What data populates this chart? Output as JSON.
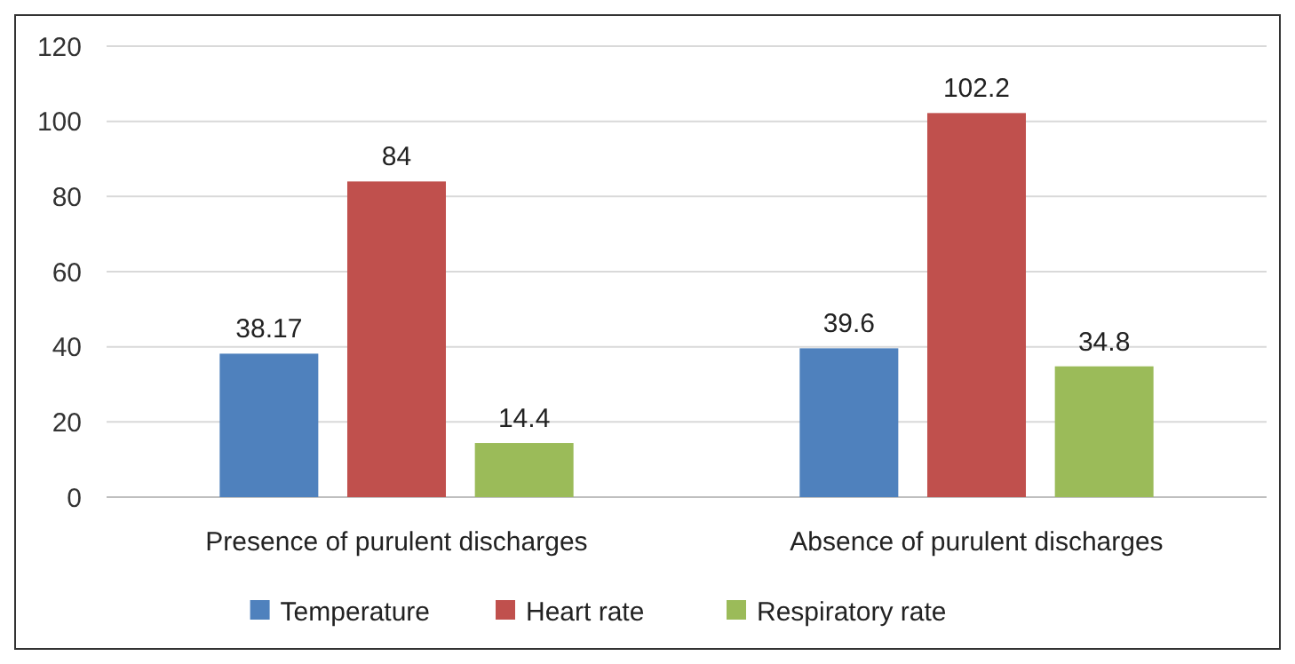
{
  "chart_data": {
    "type": "bar",
    "categories": [
      "Presence of purulent discharges",
      "Absence of purulent discharges"
    ],
    "series": [
      {
        "name": "Temperature",
        "color": "#4f81bd",
        "values": [
          38.17,
          39.6
        ]
      },
      {
        "name": "Heart rate",
        "color": "#c0504d",
        "values": [
          84,
          102.2
        ]
      },
      {
        "name": "Respiratory rate",
        "color": "#9bbb59",
        "values": [
          14.4,
          34.8
        ]
      }
    ],
    "ylim": [
      0,
      120
    ],
    "yticks": [
      0,
      20,
      40,
      60,
      80,
      100,
      120
    ],
    "grid": "y",
    "legend": "bottom",
    "data_labels": true
  }
}
